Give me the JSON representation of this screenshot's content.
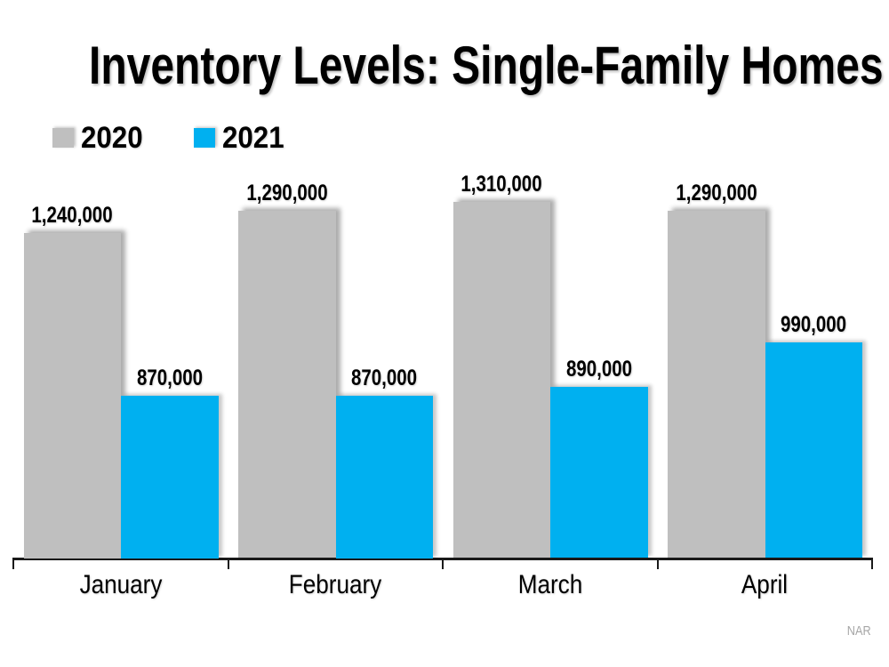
{
  "title": "Inventory Levels: Single-Family Homes",
  "source_note": "NAR",
  "colors": {
    "series_2020_gray": "#BFBFBF",
    "series_2021_blue": "#00B0F0",
    "axis": "#1A1A1A",
    "label_text": "#000000",
    "source_text": "#A6A6A6",
    "background": "#FFFFFF"
  },
  "legend": {
    "items": [
      {
        "label": "2020",
        "color": "#BFBFBF"
      },
      {
        "label": "2021",
        "color": "#00B0F0"
      }
    ]
  },
  "chart_data": {
    "type": "bar",
    "title": "Inventory Levels: Single-Family Homes",
    "categories": [
      "January",
      "February",
      "March",
      "April"
    ],
    "series": [
      {
        "name": "2020",
        "color": "#BFBFBF",
        "values": [
          1240000,
          1290000,
          1310000,
          1290000
        ],
        "data_labels": [
          "1,240,000",
          "1,290,000",
          "1,310,000",
          "1,290,000"
        ]
      },
      {
        "name": "2021",
        "color": "#00B0F0",
        "values": [
          870000,
          870000,
          890000,
          990000
        ],
        "data_labels": [
          "870,000",
          "870,000",
          "890,000",
          "990,000"
        ]
      }
    ],
    "value_axis": {
      "visible": false,
      "min": 500000,
      "max": 1400000
    },
    "category_axis": {
      "visible": true,
      "tick_marks": true
    },
    "grid": false,
    "data_labels_visible": true,
    "legend_position": "top-left",
    "source": "NAR"
  }
}
